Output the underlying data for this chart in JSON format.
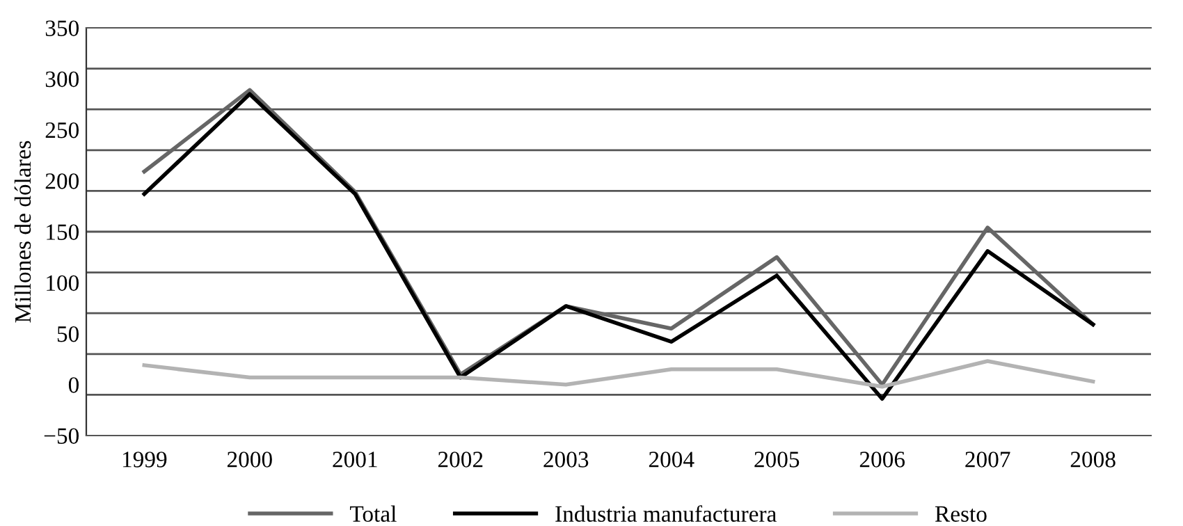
{
  "chart_data": {
    "type": "line",
    "ylabel": "Millones de dólares",
    "categories": [
      "1999",
      "2000",
      "2001",
      "2002",
      "2003",
      "2004",
      "2005",
      "2006",
      "2007",
      "2008"
    ],
    "series": [
      {
        "name": "Total",
        "color": "#666666",
        "values": [
          209,
          289,
          189,
          10,
          77,
          55,
          125,
          0,
          154,
          59
        ]
      },
      {
        "name": "Industria manufacturera",
        "color": "#000000",
        "values": [
          187,
          285,
          187,
          7,
          77,
          42,
          107,
          -14,
          131,
          59
        ]
      },
      {
        "name": "Resto",
        "color": "#b3b3b3",
        "values": [
          19,
          7,
          7,
          7,
          0,
          15,
          15,
          -2,
          23,
          3
        ]
      }
    ],
    "ylim": [
      -50,
      350
    ],
    "yticks": [
      -50,
      0,
      50,
      100,
      150,
      200,
      250,
      300,
      350,
      {
        "value": -10,
        "label": null
      },
      {
        "value": 30,
        "label": null
      },
      {
        "value": 70,
        "label": null
      },
      {
        "value": 110,
        "label": null
      },
      {
        "value": 150.0001,
        "label": null
      },
      {
        "value": 190,
        "label": null
      },
      {
        "value": 230,
        "label": null
      },
      {
        "value": 270,
        "label": null
      },
      {
        "value": 310,
        "label": null
      }
    ],
    "grid": "y",
    "legend": "bottom",
    "marker": "none",
    "line_style": "solid"
  }
}
